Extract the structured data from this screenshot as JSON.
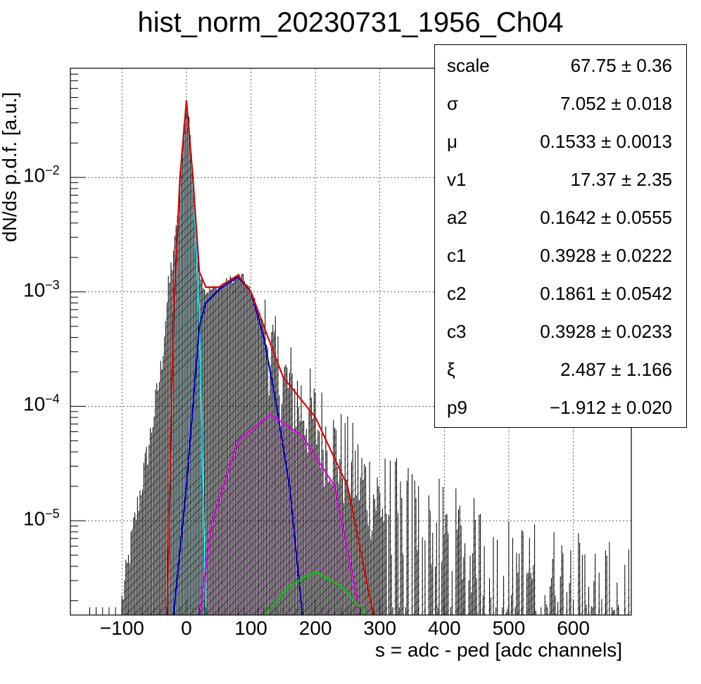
{
  "chart_data": {
    "type": "histogram_with_fit",
    "title": "hist_norm_20230731_1956_Ch04",
    "xlabel": "s = adc - ped [adc channels]",
    "ylabel": "dN/ds p.d.f. [a.u.]",
    "xlim": [
      -180,
      690
    ],
    "ylim": [
      1.5e-06,
      0.09
    ],
    "yscale": "log",
    "grid": true,
    "x_ticks": [
      "−100",
      "0",
      "100",
      "200",
      "300",
      "400",
      "500",
      "600"
    ],
    "y_ticks": [
      {
        "base": "10",
        "exp": "−2"
      },
      {
        "base": "10",
        "exp": "−3"
      },
      {
        "base": "10",
        "exp": "−4"
      },
      {
        "base": "10",
        "exp": "−5"
      }
    ],
    "histogram_envelope": [
      [
        -100,
        2e-06
      ],
      [
        -80,
        1e-05
      ],
      [
        -60,
        4e-05
      ],
      [
        -40,
        0.0002
      ],
      [
        -30,
        0.0008
      ],
      [
        -15,
        0.004
      ],
      [
        -5,
        0.025
      ],
      [
        0,
        0.046
      ],
      [
        5,
        0.03
      ],
      [
        15,
        0.004
      ],
      [
        20,
        0.0015
      ],
      [
        30,
        0.001
      ],
      [
        50,
        0.0011
      ],
      [
        70,
        0.0013
      ],
      [
        85,
        0.0014
      ],
      [
        100,
        0.001
      ],
      [
        120,
        0.0005
      ],
      [
        140,
        0.0002
      ],
      [
        170,
        0.00012
      ],
      [
        200,
        7e-05
      ],
      [
        250,
        3e-05
      ],
      [
        300,
        1.5e-05
      ],
      [
        400,
        8e-06
      ],
      [
        500,
        4e-06
      ],
      [
        600,
        3e-06
      ],
      [
        690,
        2e-06
      ]
    ],
    "components": [
      {
        "color": "#00dfe8",
        "points": [
          [
            -30,
            1.5e-06
          ],
          [
            -20,
            0.0006
          ],
          [
            -10,
            0.01
          ],
          [
            0,
            0.045
          ],
          [
            10,
            0.01
          ],
          [
            20,
            0.0006
          ],
          [
            30,
            1.5e-06
          ]
        ]
      },
      {
        "color": "#0000cc",
        "points": [
          [
            -20,
            1.5e-06
          ],
          [
            0,
            2e-05
          ],
          [
            10,
            0.0001
          ],
          [
            20,
            0.0005
          ],
          [
            30,
            0.0008
          ],
          [
            50,
            0.00105
          ],
          [
            80,
            0.00135
          ],
          [
            100,
            0.001
          ],
          [
            120,
            0.0004
          ],
          [
            140,
            0.0001
          ],
          [
            160,
            2e-05
          ],
          [
            180,
            1.5e-06
          ]
        ]
      },
      {
        "color": "#dd00dd",
        "points": [
          [
            20,
            1.5e-06
          ],
          [
            40,
            1e-05
          ],
          [
            80,
            5e-05
          ],
          [
            130,
            8.5e-05
          ],
          [
            180,
            5.5e-05
          ],
          [
            230,
            2e-05
          ],
          [
            270,
            1.5e-06
          ]
        ]
      },
      {
        "color": "#00cc00",
        "points": [
          [
            120,
            1.5e-06
          ],
          [
            160,
            2.7e-06
          ],
          [
            200,
            3.6e-06
          ],
          [
            240,
            2.7e-06
          ],
          [
            280,
            1.5e-06
          ]
        ]
      },
      {
        "color": "#dd0000",
        "points": [
          [
            -30,
            1.5e-06
          ],
          [
            -20,
            0.0006
          ],
          [
            -10,
            0.01
          ],
          [
            0,
            0.047
          ],
          [
            10,
            0.01
          ],
          [
            20,
            0.0015
          ],
          [
            30,
            0.0011
          ],
          [
            50,
            0.0011
          ],
          [
            80,
            0.0014
          ],
          [
            100,
            0.001
          ],
          [
            120,
            0.0005
          ],
          [
            150,
            0.00018
          ],
          [
            200,
            8e-05
          ],
          [
            250,
            2e-05
          ],
          [
            290,
            1.5e-06
          ]
        ]
      }
    ],
    "stats": [
      {
        "name": "scale",
        "value": "67.75",
        "error": "0.36"
      },
      {
        "name": "σ",
        "value": "7.052",
        "error": "0.018"
      },
      {
        "name": "μ",
        "value": "0.1533",
        "error": "0.0013"
      },
      {
        "name": "v1",
        "value": "17.37",
        "error": "2.35"
      },
      {
        "name": "a2",
        "value": "0.1642",
        "error": "0.0555"
      },
      {
        "name": "c1",
        "value": "0.3928",
        "error": "0.0222"
      },
      {
        "name": "c2",
        "value": "0.1861",
        "error": "0.0542"
      },
      {
        "name": "c3",
        "value": "0.3928",
        "error": "0.0233"
      },
      {
        "name": "ξ",
        "value": "2.487",
        "error": "1.166"
      },
      {
        "name": "p9",
        "value": "−1.912",
        "error": "0.020"
      }
    ]
  }
}
